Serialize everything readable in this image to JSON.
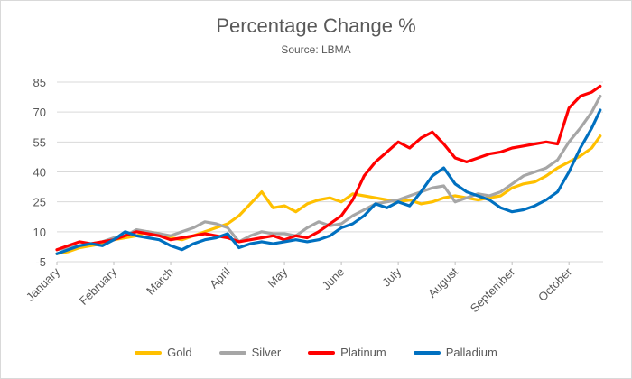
{
  "chart_data": {
    "type": "line",
    "title": "Percentage Change %",
    "subtitle": "Source: LBMA",
    "xlabel": "",
    "ylabel": "",
    "ylim": [
      -5,
      85
    ],
    "y_ticks": [
      "85",
      "70",
      "55",
      "40",
      "25",
      "10",
      "-5"
    ],
    "x_ticks": [
      "January",
      "February",
      "March",
      "April",
      "May",
      "June",
      "July",
      "August",
      "September",
      "October"
    ],
    "x_tick_positions": [
      0,
      1,
      2,
      3,
      4,
      5,
      6,
      7,
      8,
      9
    ],
    "x_range": [
      0,
      9.6
    ],
    "grid": true,
    "legend_position": "bottom",
    "series": [
      {
        "name": "Gold",
        "color": "#ffc000",
        "x": [
          0,
          0.2,
          0.4,
          0.6,
          0.8,
          1,
          1.2,
          1.4,
          1.6,
          1.8,
          2,
          2.2,
          2.4,
          2.6,
          2.8,
          3,
          3.2,
          3.4,
          3.6,
          3.8,
          4,
          4.2,
          4.4,
          4.6,
          4.8,
          5,
          5.2,
          5.4,
          5.6,
          5.8,
          6,
          6.2,
          6.4,
          6.6,
          6.8,
          7,
          7.2,
          7.4,
          7.6,
          7.8,
          8,
          8.2,
          8.4,
          8.6,
          8.8,
          9,
          9.2,
          9.4,
          9.55
        ],
        "y": [
          -1,
          0,
          2,
          3,
          4,
          6,
          7,
          8,
          10,
          9,
          7,
          6,
          8,
          10,
          12,
          14,
          18,
          24,
          30,
          22,
          23,
          20,
          24,
          26,
          27,
          25,
          29,
          28,
          27,
          26,
          25,
          26,
          24,
          25,
          27,
          28,
          27,
          26,
          27,
          28,
          32,
          34,
          35,
          38,
          42,
          45,
          48,
          52,
          58
        ]
      },
      {
        "name": "Silver",
        "color": "#a6a6a6",
        "x": [
          0,
          0.2,
          0.4,
          0.6,
          0.8,
          1,
          1.2,
          1.4,
          1.6,
          1.8,
          2,
          2.2,
          2.4,
          2.6,
          2.8,
          3,
          3.2,
          3.4,
          3.6,
          3.8,
          4,
          4.2,
          4.4,
          4.6,
          4.8,
          5,
          5.2,
          5.4,
          5.6,
          5.8,
          6,
          6.2,
          6.4,
          6.6,
          6.8,
          7,
          7.2,
          7.4,
          7.6,
          7.8,
          8,
          8.2,
          8.4,
          8.6,
          8.8,
          9,
          9.2,
          9.4,
          9.55
        ],
        "y": [
          1,
          2,
          3,
          4,
          5,
          7,
          8,
          11,
          10,
          9,
          8,
          10,
          12,
          15,
          14,
          12,
          5,
          8,
          10,
          9,
          9,
          8,
          12,
          15,
          13,
          14,
          18,
          21,
          24,
          25,
          26,
          28,
          30,
          32,
          33,
          25,
          27,
          29,
          28,
          30,
          34,
          38,
          40,
          42,
          46,
          55,
          62,
          70,
          78
        ]
      },
      {
        "name": "Platinum",
        "color": "#ff0000",
        "x": [
          0,
          0.2,
          0.4,
          0.6,
          0.8,
          1,
          1.2,
          1.4,
          1.6,
          1.8,
          2,
          2.2,
          2.4,
          2.6,
          2.8,
          3,
          3.2,
          3.4,
          3.6,
          3.8,
          4,
          4.2,
          4.4,
          4.6,
          4.8,
          5,
          5.2,
          5.4,
          5.6,
          5.8,
          6,
          6.2,
          6.4,
          6.6,
          6.8,
          7,
          7.2,
          7.4,
          7.6,
          7.8,
          8,
          8.2,
          8.4,
          8.6,
          8.8,
          9,
          9.2,
          9.4,
          9.55
        ],
        "y": [
          1,
          3,
          5,
          4,
          5,
          6,
          8,
          10,
          9,
          8,
          6,
          7,
          8,
          9,
          8,
          7,
          5,
          6,
          7,
          8,
          6,
          8,
          7,
          10,
          14,
          18,
          26,
          38,
          45,
          50,
          55,
          52,
          57,
          60,
          54,
          47,
          45,
          47,
          49,
          50,
          52,
          53,
          54,
          55,
          54,
          72,
          78,
          80,
          83
        ]
      },
      {
        "name": "Palladium",
        "color": "#0070c0",
        "x": [
          0,
          0.2,
          0.4,
          0.6,
          0.8,
          1,
          1.2,
          1.4,
          1.6,
          1.8,
          2,
          2.2,
          2.4,
          2.6,
          2.8,
          3,
          3.2,
          3.4,
          3.6,
          3.8,
          4,
          4.2,
          4.4,
          4.6,
          4.8,
          5,
          5.2,
          5.4,
          5.6,
          5.8,
          6,
          6.2,
          6.4,
          6.6,
          6.8,
          7,
          7.2,
          7.4,
          7.6,
          7.8,
          8,
          8.2,
          8.4,
          8.6,
          8.8,
          9,
          9.2,
          9.4,
          9.55
        ],
        "y": [
          -1,
          1,
          3,
          4,
          3,
          6,
          10,
          8,
          7,
          6,
          3,
          1,
          4,
          6,
          7,
          9,
          2,
          4,
          5,
          4,
          5,
          6,
          5,
          6,
          8,
          12,
          14,
          18,
          24,
          22,
          25,
          23,
          30,
          38,
          42,
          34,
          30,
          28,
          26,
          22,
          20,
          21,
          23,
          26,
          30,
          40,
          52,
          62,
          71
        ]
      }
    ]
  }
}
